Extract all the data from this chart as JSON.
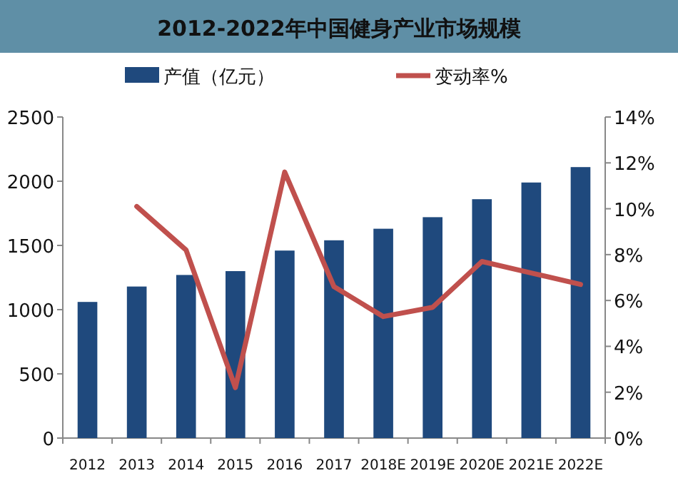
{
  "chart_data": {
    "type": "bar",
    "title": "2012-2022年中国健身产业市场规模",
    "categories": [
      "2012",
      "2013",
      "2014",
      "2015",
      "2016",
      "2017",
      "2018E",
      "2019E",
      "2020E",
      "2021E",
      "2022E"
    ],
    "series": [
      {
        "name": "产值（亿元）",
        "color": "#1f497d",
        "values": [
          1060,
          1180,
          1270,
          1300,
          1460,
          1540,
          1630,
          1720,
          1860,
          1990,
          2110
        ]
      },
      {
        "name": "变动率%",
        "type": "line",
        "axis": "y2",
        "color": "#c0504d",
        "values": [
          null,
          10.1,
          8.2,
          2.2,
          11.6,
          6.6,
          5.3,
          5.7,
          7.7,
          7.2,
          6.7
        ]
      }
    ],
    "ylim": [
      0,
      2500
    ],
    "yticks": [
      0,
      500,
      1000,
      1500,
      2000,
      2500
    ],
    "y2lim": [
      0,
      14
    ],
    "y2ticks": [
      {
        "value": 0,
        "label": "0%"
      },
      {
        "value": 2,
        "label": "2%"
      },
      {
        "value": 4,
        "label": "4%"
      },
      {
        "value": 6,
        "label": "6%"
      },
      {
        "value": 8,
        "label": "8%"
      },
      {
        "value": 10,
        "label": "10%"
      },
      {
        "value": 12,
        "label": "12%"
      },
      {
        "value": 14,
        "label": "14%"
      }
    ],
    "legend": "top",
    "grid": false,
    "marker": "none",
    "line_style": "solid"
  }
}
